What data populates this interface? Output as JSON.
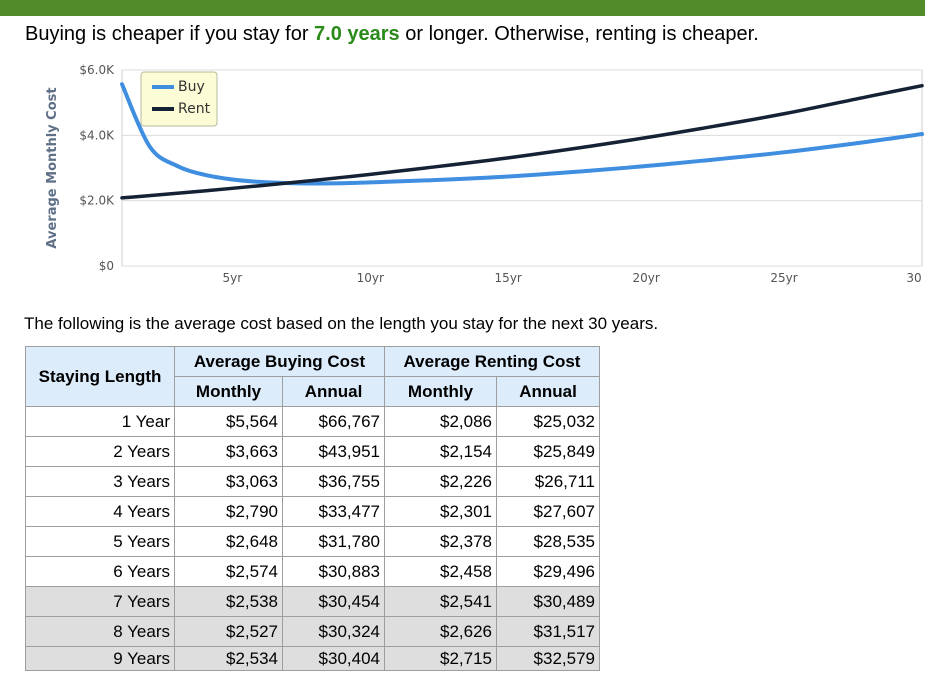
{
  "header": {
    "text_before": "Buying is cheaper if you stay for ",
    "highlight": "7.0 years",
    "text_after": " or longer. Otherwise, renting is cheaper."
  },
  "note": "The following is the average cost based on the length you stay for the next 30 years.",
  "colors": {
    "buy": "#3f8ee0",
    "rent": "#152235",
    "header_bg": "#528b2a",
    "highlight_text": "#2a8a1a",
    "legend_bg": "#fcfcd6"
  },
  "chart_data": {
    "type": "line",
    "title": "",
    "xlabel": "",
    "ylabel": "Average Monthly Cost",
    "xlim": [
      1,
      30
    ],
    "ylim": [
      0,
      6000
    ],
    "y_ticks": [
      {
        "value": 0,
        "label": "$0"
      },
      {
        "value": 2000,
        "label": "$2.0K"
      },
      {
        "value": 4000,
        "label": "$4.0K"
      },
      {
        "value": 6000,
        "label": "$6.0K"
      }
    ],
    "x_ticks": [
      {
        "value": 5,
        "label": "5yr"
      },
      {
        "value": 10,
        "label": "10yr"
      },
      {
        "value": 15,
        "label": "15yr"
      },
      {
        "value": 20,
        "label": "20yr"
      },
      {
        "value": 25,
        "label": "25yr"
      },
      {
        "value": 30,
        "label": "30"
      }
    ],
    "grid": true,
    "legend": "top-left",
    "x": [
      1,
      2,
      3,
      4,
      5,
      6,
      7,
      8,
      9,
      10,
      12,
      15,
      18,
      20,
      22,
      25,
      28,
      30
    ],
    "series": [
      {
        "name": "Buy",
        "values": [
          5564,
          3663,
          3063,
          2790,
          2648,
          2574,
          2538,
          2527,
          2534,
          2560,
          2620,
          2740,
          2920,
          3060,
          3220,
          3480,
          3800,
          4040
        ]
      },
      {
        "name": "Rent",
        "values": [
          2086,
          2154,
          2226,
          2301,
          2378,
          2458,
          2541,
          2626,
          2715,
          2806,
          3000,
          3310,
          3670,
          3930,
          4210,
          4660,
          5180,
          5520
        ]
      }
    ]
  },
  "table": {
    "col_staying": "Staying Length",
    "group_buy": "Average Buying Cost",
    "group_rent": "Average Renting Cost",
    "sub_headers": [
      "Monthly",
      "Annual",
      "Monthly",
      "Annual"
    ],
    "rows": [
      [
        "1 Year",
        "$5,564",
        "$66,767",
        "$2,086",
        "$25,032"
      ],
      [
        "2 Years",
        "$3,663",
        "$43,951",
        "$2,154",
        "$25,849"
      ],
      [
        "3 Years",
        "$3,063",
        "$36,755",
        "$2,226",
        "$26,711"
      ],
      [
        "4 Years",
        "$2,790",
        "$33,477",
        "$2,301",
        "$27,607"
      ],
      [
        "5 Years",
        "$2,648",
        "$31,780",
        "$2,378",
        "$28,535"
      ],
      [
        "6 Years",
        "$2,574",
        "$30,883",
        "$2,458",
        "$29,496"
      ],
      [
        "7 Years",
        "$2,538",
        "$30,454",
        "$2,541",
        "$30,489"
      ],
      [
        "8 Years",
        "$2,527",
        "$30,324",
        "$2,626",
        "$31,517"
      ],
      [
        "9 Years",
        "$2,534",
        "$30,404",
        "$2,715",
        "$32,579"
      ]
    ],
    "highlight_from": 6
  }
}
